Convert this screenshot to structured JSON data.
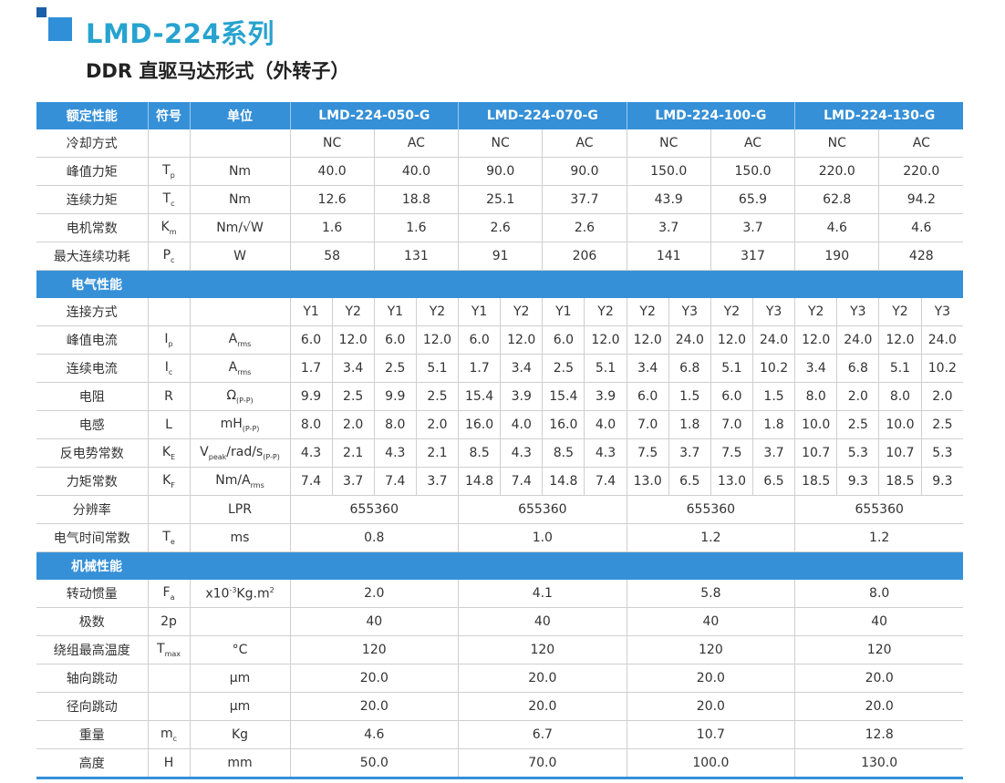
{
  "header": {
    "title": "LMD-224系列",
    "subtitle": "DDR 直驱马达形式（外转子）"
  },
  "table": {
    "head": {
      "name": "额定性能",
      "symbol": "符号",
      "unit": "单位",
      "models": [
        "LMD-224-050-G",
        "LMD-224-070-G",
        "LMD-224-100-G",
        "LMD-224-130-G"
      ]
    },
    "rows": [
      {
        "name": "冷却方式",
        "cells": [
          "NC",
          "AC",
          "NC",
          "AC",
          "NC",
          "AC",
          "NC",
          "AC"
        ]
      },
      {
        "name": "峰值力矩",
        "symbol": [
          {
            "text": "T"
          },
          {
            "sub": "p"
          }
        ],
        "unit": "Nm",
        "cells": [
          "40.0",
          "40.0",
          "90.0",
          "90.0",
          "150.0",
          "150.0",
          "220.0",
          "220.0"
        ]
      },
      {
        "name": "连续力矩",
        "symbol": [
          {
            "text": "T"
          },
          {
            "sub": "c"
          }
        ],
        "unit": "Nm",
        "cells": [
          "12.6",
          "18.8",
          "25.1",
          "37.7",
          "43.9",
          "65.9",
          "62.8",
          "94.2"
        ]
      },
      {
        "name": "电机常数",
        "symbol": [
          {
            "text": "K"
          },
          {
            "sub": "m"
          }
        ],
        "unit": "Nm/√W",
        "cells": [
          "1.6",
          "1.6",
          "2.6",
          "2.6",
          "3.7",
          "3.7",
          "4.6",
          "4.6"
        ]
      },
      {
        "name": "最大连续功耗",
        "symbol": [
          {
            "text": "P"
          },
          {
            "sub": "c"
          }
        ],
        "unit": "W",
        "cells": [
          "58",
          "131",
          "91",
          "206",
          "141",
          "317",
          "190",
          "428"
        ]
      },
      {
        "section": "电气性能"
      },
      {
        "name": "连接方式",
        "cells": [
          "Y1",
          "Y2",
          "Y1",
          "Y2",
          "Y1",
          "Y2",
          "Y1",
          "Y2",
          "Y2",
          "Y3",
          "Y2",
          "Y3",
          "Y2",
          "Y3",
          "Y2",
          "Y3"
        ]
      },
      {
        "name": "峰值电流",
        "symbol": [
          {
            "text": "I"
          },
          {
            "sub": "p"
          }
        ],
        "unit": [
          {
            "text": "A"
          },
          {
            "sub": "rms"
          }
        ],
        "cells": [
          "6.0",
          "12.0",
          "6.0",
          "12.0",
          "6.0",
          "12.0",
          "6.0",
          "12.0",
          "12.0",
          "24.0",
          "12.0",
          "24.0",
          "12.0",
          "24.0",
          "12.0",
          "24.0"
        ]
      },
      {
        "name": "连续电流",
        "symbol": [
          {
            "text": "I"
          },
          {
            "sub": "c"
          }
        ],
        "unit": [
          {
            "text": "A"
          },
          {
            "sub": "rms"
          }
        ],
        "cells": [
          "1.7",
          "3.4",
          "2.5",
          "5.1",
          "1.7",
          "3.4",
          "2.5",
          "5.1",
          "3.4",
          "6.8",
          "5.1",
          "10.2",
          "3.4",
          "6.8",
          "5.1",
          "10.2"
        ]
      },
      {
        "name": "电阻",
        "symbol": "R",
        "unit": [
          {
            "text": "Ω"
          },
          {
            "sub": "(P-P)"
          }
        ],
        "cells": [
          "9.9",
          "2.5",
          "9.9",
          "2.5",
          "15.4",
          "3.9",
          "15.4",
          "3.9",
          "6.0",
          "1.5",
          "6.0",
          "1.5",
          "8.0",
          "2.0",
          "8.0",
          "2.0"
        ]
      },
      {
        "name": "电感",
        "symbol": "L",
        "unit": [
          {
            "text": "mH"
          },
          {
            "sub": "(P-P)"
          }
        ],
        "cells": [
          "8.0",
          "2.0",
          "8.0",
          "2.0",
          "16.0",
          "4.0",
          "16.0",
          "4.0",
          "7.0",
          "1.8",
          "7.0",
          "1.8",
          "10.0",
          "2.5",
          "10.0",
          "2.5"
        ]
      },
      {
        "name": "反电势常数",
        "symbol": [
          {
            "text": "K"
          },
          {
            "sub": "E"
          }
        ],
        "unit": [
          {
            "text": "V"
          },
          {
            "sub": "peak"
          },
          {
            "text": "/rad/s"
          },
          {
            "sub": "(P-P)"
          }
        ],
        "cells": [
          "4.3",
          "2.1",
          "4.3",
          "2.1",
          "8.5",
          "4.3",
          "8.5",
          "4.3",
          "7.5",
          "3.7",
          "7.5",
          "3.7",
          "10.7",
          "5.3",
          "10.7",
          "5.3"
        ]
      },
      {
        "name": "力矩常数",
        "symbol": [
          {
            "text": "K"
          },
          {
            "sub": "F"
          }
        ],
        "unit": [
          {
            "text": "Nm/A"
          },
          {
            "sub": "rms"
          }
        ],
        "cells": [
          "7.4",
          "3.7",
          "7.4",
          "3.7",
          "14.8",
          "7.4",
          "14.8",
          "7.4",
          "13.0",
          "6.5",
          "13.0",
          "6.5",
          "18.5",
          "9.3",
          "18.5",
          "9.3"
        ]
      },
      {
        "name": "分辨率",
        "unit": "LPR",
        "cells": [
          "655360",
          "655360",
          "655360",
          "655360"
        ]
      },
      {
        "name": "电气时间常数",
        "symbol": [
          {
            "text": "T"
          },
          {
            "sub": "e"
          }
        ],
        "unit": "ms",
        "cells": [
          "0.8",
          "1.0",
          "1.2",
          "1.2"
        ]
      },
      {
        "section": "机械性能"
      },
      {
        "name": "转动惯量",
        "symbol": [
          {
            "text": "F"
          },
          {
            "sub": "a"
          }
        ],
        "unit": [
          {
            "text": "x10"
          },
          {
            "sup": "-3"
          },
          {
            "text": "Kg.m"
          },
          {
            "sup": "2"
          }
        ],
        "cells": [
          "2.0",
          "4.1",
          "5.8",
          "8.0"
        ]
      },
      {
        "name": "极数",
        "symbol": "2p",
        "cells": [
          "40",
          "40",
          "40",
          "40"
        ]
      },
      {
        "name": "绕组最高温度",
        "symbol": [
          {
            "text": "T"
          },
          {
            "sub": "max"
          }
        ],
        "unit": "°C",
        "cells": [
          "120",
          "120",
          "120",
          "120"
        ]
      },
      {
        "name": "轴向跳动",
        "unit": "μm",
        "cells": [
          "20.0",
          "20.0",
          "20.0",
          "20.0"
        ]
      },
      {
        "name": "径向跳动",
        "unit": "μm",
        "cells": [
          "20.0",
          "20.0",
          "20.0",
          "20.0"
        ]
      },
      {
        "name": "重量",
        "symbol": [
          {
            "text": "m"
          },
          {
            "sub": "c"
          }
        ],
        "unit": "Kg",
        "cells": [
          "4.6",
          "6.7",
          "10.7",
          "12.8"
        ]
      },
      {
        "name": "高度",
        "symbol": "H",
        "unit": "mm",
        "cells": [
          "50.0",
          "70.0",
          "100.0",
          "130.0"
        ]
      }
    ]
  }
}
